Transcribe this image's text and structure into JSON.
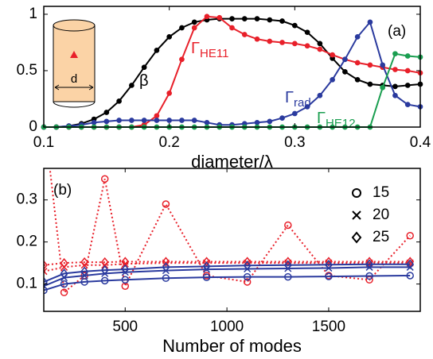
{
  "chart_data": [
    {
      "type": "line",
      "annotation": "(a)",
      "xlabel": "diameter/λ",
      "x": [
        0.1,
        0.11,
        0.12,
        0.13,
        0.14,
        0.15,
        0.16,
        0.17,
        0.18,
        0.19,
        0.2,
        0.21,
        0.22,
        0.23,
        0.24,
        0.25,
        0.26,
        0.27,
        0.28,
        0.29,
        0.3,
        0.31,
        0.32,
        0.33,
        0.34,
        0.35,
        0.36,
        0.37,
        0.38,
        0.39,
        0.4
      ],
      "xlim": [
        0.1,
        0.4
      ],
      "xticks": [
        0.1,
        0.2,
        0.3,
        0.4
      ],
      "ylim": [
        0,
        1.07
      ],
      "yticks": [
        0,
        0.5,
        1
      ],
      "inset_label": "d",
      "series": [
        {
          "name": "β",
          "color": "#000000",
          "values": [
            0,
            0,
            0.01,
            0.03,
            0.07,
            0.13,
            0.23,
            0.37,
            0.53,
            0.68,
            0.8,
            0.88,
            0.93,
            0.95,
            0.96,
            0.96,
            0.96,
            0.96,
            0.95,
            0.94,
            0.9,
            0.84,
            0.74,
            0.61,
            0.49,
            0.42,
            0.38,
            0.37,
            0.36,
            0.37,
            0.38
          ]
        },
        {
          "name": "Γ",
          "subscript": "HE11",
          "color": "#e8202a",
          "values": [
            0,
            0,
            0,
            0,
            0,
            0,
            0,
            0,
            0.02,
            0.1,
            0.3,
            0.6,
            0.88,
            0.98,
            0.97,
            0.88,
            0.82,
            0.78,
            0.76,
            0.75,
            0.74,
            0.72,
            0.69,
            0.64,
            0.6,
            0.57,
            0.55,
            0.53,
            0.51,
            0.5,
            0.48
          ]
        },
        {
          "name": "Γ",
          "subscript": "rad",
          "color": "#2a3a9e",
          "values": [
            0,
            0,
            0.01,
            0.02,
            0.04,
            0.05,
            0.06,
            0.06,
            0.06,
            0.06,
            0.06,
            0.06,
            0.06,
            0.04,
            0.02,
            0.02,
            0.03,
            0.04,
            0.05,
            0.08,
            0.12,
            0.18,
            0.28,
            0.42,
            0.6,
            0.8,
            0.93,
            0.55,
            0.28,
            0.2,
            0.18
          ]
        },
        {
          "name": "Γ",
          "subscript": "HE12",
          "color": "#1a9e50",
          "values": [
            0,
            0,
            0,
            0,
            0,
            0,
            0,
            0,
            0,
            0,
            0,
            0,
            0,
            0,
            0,
            0,
            0,
            0,
            0,
            0,
            0,
            0,
            0,
            0,
            0,
            0,
            0,
            0.35,
            0.65,
            0.63,
            0.62
          ]
        }
      ]
    },
    {
      "type": "line",
      "annotation": "(b)",
      "xlabel": "Number of modes",
      "x": [
        100,
        200,
        300,
        400,
        500,
        700,
        900,
        1100,
        1300,
        1500,
        1700,
        1900
      ],
      "xlim": [
        100,
        1950
      ],
      "xticks": [
        500,
        1000,
        1500
      ],
      "ylim": [
        0.035,
        0.375
      ],
      "yticks": [
        0.1,
        0.2,
        0.3
      ],
      "legend": [
        {
          "marker": "circle",
          "label": "15"
        },
        {
          "marker": "cross",
          "label": "20"
        },
        {
          "marker": "diamond",
          "label": "25"
        }
      ],
      "series": [
        {
          "marker": "circle",
          "color": "#e8202a",
          "dash": true,
          "values": [
            0.5,
            0.08,
            0.12,
            0.35,
            0.095,
            0.29,
            0.12,
            0.105,
            0.24,
            0.12,
            0.11,
            0.215
          ]
        },
        {
          "marker": "cross",
          "color": "#e8202a",
          "dash": true,
          "values": [
            0.13,
            0.14,
            0.145,
            0.145,
            0.148,
            0.15,
            0.15,
            0.15,
            0.15,
            0.15,
            0.15,
            0.15
          ]
        },
        {
          "marker": "diamond",
          "color": "#e8202a",
          "dash": true,
          "values": [
            0.145,
            0.15,
            0.152,
            0.152,
            0.153,
            0.153,
            0.153,
            0.153,
            0.153,
            0.153,
            0.153,
            0.153
          ]
        },
        {
          "marker": "circle",
          "color": "#2a3a9e",
          "dash": false,
          "values": [
            0.085,
            0.1,
            0.105,
            0.108,
            0.11,
            0.114,
            0.116,
            0.117,
            0.117,
            0.118,
            0.119,
            0.12
          ]
        },
        {
          "marker": "cross",
          "color": "#2a3a9e",
          "dash": false,
          "values": [
            0.095,
            0.115,
            0.12,
            0.125,
            0.128,
            0.132,
            0.135,
            0.136,
            0.137,
            0.138,
            0.14,
            0.14
          ]
        },
        {
          "marker": "diamond",
          "color": "#2a3a9e",
          "dash": false,
          "values": [
            0.105,
            0.125,
            0.13,
            0.133,
            0.135,
            0.14,
            0.142,
            0.144,
            0.145,
            0.146,
            0.147,
            0.147
          ]
        }
      ]
    }
  ]
}
